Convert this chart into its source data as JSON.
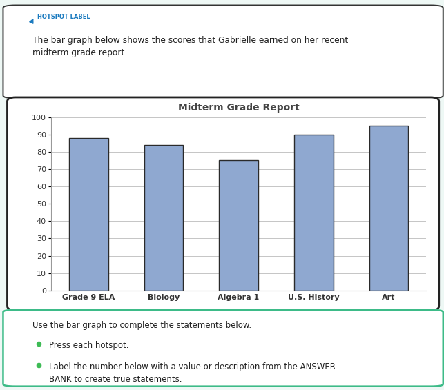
{
  "title": "Midterm Grade Report",
  "categories": [
    "Grade 9 ELA",
    "Biology",
    "Algebra 1",
    "U.S. History",
    "Art"
  ],
  "values": [
    88,
    84,
    75,
    90,
    95
  ],
  "bar_color": "#8FA8D0",
  "bar_edgecolor": "#2a2a2a",
  "ylim": [
    0,
    100
  ],
  "yticks": [
    0,
    10,
    20,
    30,
    40,
    50,
    60,
    70,
    80,
    90,
    100
  ],
  "title_fontsize": 10,
  "tick_fontsize": 8,
  "page_bg": "#eef8f5",
  "box_bg": "#ffffff",
  "chart_bg": "#ffffff",
  "top_label_text": "HOTSPOT LABEL",
  "top_label_color": "#1a7abf",
  "description_text": "The bar graph below shows the scores that Gabrielle earned on her recent\nmidterm grade report.",
  "instruction_text": "Use the bar graph to complete the statements below.",
  "bullet1": "Press each hotspot.",
  "bullet2": "Label the number below with a value or description from the ANSWER\nBANK to create true statements.",
  "grid_color": "#bbbbbb",
  "chart_border_color": "#222222",
  "top_box_border": "#333333",
  "bottom_box_border": "#3dbb88",
  "text_color": "#222222",
  "bullet_color": "#3dbb55"
}
